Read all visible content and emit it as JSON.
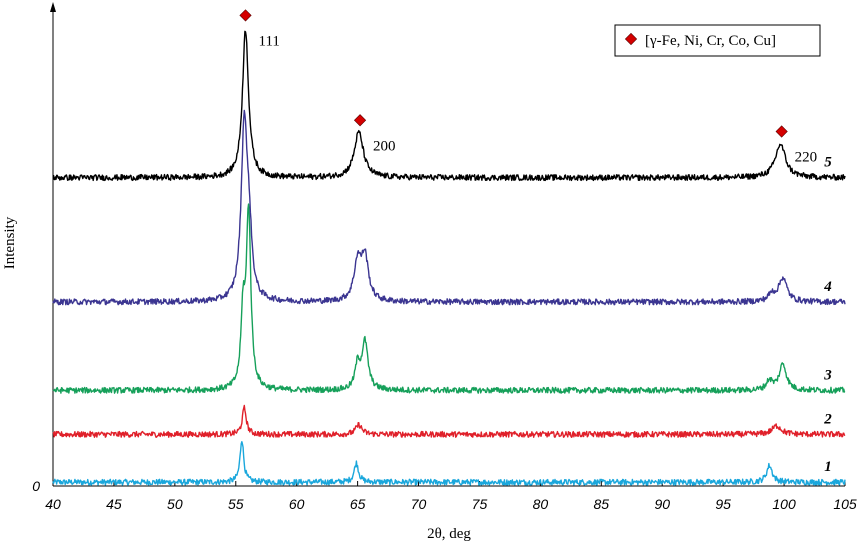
{
  "chart_data": {
    "type": "line",
    "title": "",
    "xlabel": "2θ, deg",
    "ylabel": "Intensity",
    "xlim": [
      40,
      105
    ],
    "x_ticks": [
      "40",
      "45",
      "50",
      "55",
      "60",
      "65",
      "70",
      "75",
      "80",
      "85",
      "90",
      "95",
      "100",
      "105"
    ],
    "y_tick_label": "0",
    "grid": false,
    "legend": {
      "position": "top-right",
      "marker_color": "#d40000",
      "entry": "[γ-Fe, Ni, Cr, Co, Cu]"
    },
    "peak_markers": [
      {
        "x": 55.8,
        "label": "111"
      },
      {
        "x": 65.2,
        "label": "200"
      },
      {
        "x": 99.8,
        "label": "220"
      }
    ],
    "series": [
      {
        "curve_label": "1",
        "color": "#1aa7dc",
        "baseline": 0.008,
        "peaks": [
          {
            "x": 55.5,
            "height": 0.09,
            "width": 0.18
          },
          {
            "x": 64.9,
            "height": 0.04,
            "width": 0.22
          },
          {
            "x": 98.8,
            "height": 0.035,
            "width": 0.28
          }
        ]
      },
      {
        "curve_label": "2",
        "color": "#e0202a",
        "baseline": 0.108,
        "peaks": [
          {
            "x": 55.7,
            "height": 0.055,
            "width": 0.2
          },
          {
            "x": 65.1,
            "height": 0.02,
            "width": 0.3
          },
          {
            "x": 99.4,
            "height": 0.018,
            "width": 0.45
          }
        ]
      },
      {
        "curve_label": "3",
        "color": "#16a05a",
        "baseline": 0.2,
        "peaks": [
          {
            "x": 55.6,
            "height": 0.15,
            "width": 0.2
          },
          {
            "x": 56.05,
            "height": 0.37,
            "width": 0.22
          },
          {
            "x": 65.0,
            "height": 0.05,
            "width": 0.25
          },
          {
            "x": 65.6,
            "height": 0.1,
            "width": 0.3
          },
          {
            "x": 98.8,
            "height": 0.02,
            "width": 0.3
          },
          {
            "x": 99.9,
            "height": 0.055,
            "width": 0.35
          }
        ]
      },
      {
        "curve_label": "4",
        "color": "#3b3591",
        "baseline": 0.385,
        "peaks": [
          {
            "x": 55.7,
            "height": 0.37,
            "width": 0.3
          },
          {
            "x": 56.1,
            "height": 0.11,
            "width": 0.25
          },
          {
            "x": 65.0,
            "height": 0.08,
            "width": 0.35
          },
          {
            "x": 65.6,
            "height": 0.09,
            "width": 0.35
          },
          {
            "x": 99.0,
            "height": 0.015,
            "width": 0.35
          },
          {
            "x": 99.9,
            "height": 0.05,
            "width": 0.4
          }
        ]
      },
      {
        "curve_label": "5",
        "color": "#000000",
        "baseline": 0.645,
        "peaks": [
          {
            "x": 55.8,
            "height": 0.31,
            "width": 0.3
          },
          {
            "x": 65.1,
            "height": 0.095,
            "width": 0.45
          },
          {
            "x": 99.7,
            "height": 0.07,
            "width": 0.5
          }
        ]
      }
    ]
  }
}
